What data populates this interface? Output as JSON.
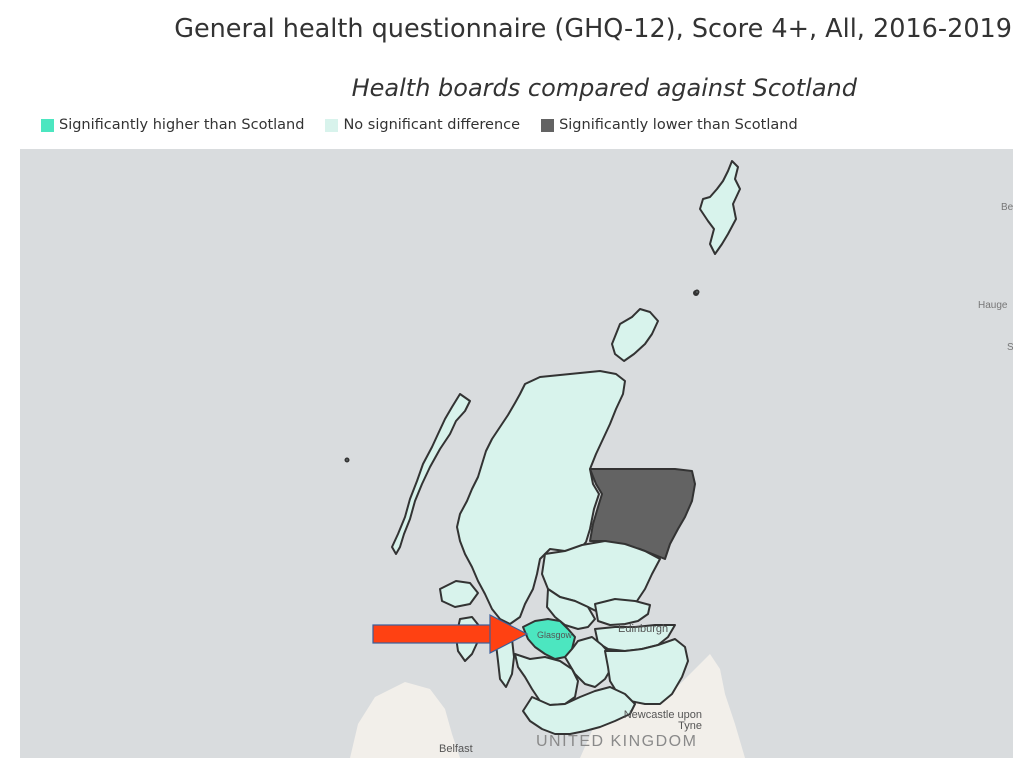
{
  "title": "General health questionnaire (GHQ-12), Score 4+, All, 2016-2019",
  "subtitle": "Health boards compared against Scotland",
  "legend": [
    {
      "label": "Significantly higher than Scotland",
      "color": "#4ce6c0"
    },
    {
      "label": "No significant difference",
      "color": "#d8f3ec"
    },
    {
      "label": "Significantly lower than Scotland",
      "color": "#636363"
    }
  ],
  "map": {
    "background_color": "#d9dcde",
    "land_color": "#f2efea",
    "arrow_color": "#ff4112",
    "place_labels": {
      "edinburgh": "Edinburgh",
      "glasgow": "Glasgow",
      "newcastle": "Newcastle upon Tyne",
      "belfast": "Belfast",
      "uk": "UNITED KINGDOM",
      "bergen": "Be",
      "haugesund": "Hauge",
      "stavanger": "S"
    },
    "regions": [
      {
        "name": "Grampian",
        "status": "Significantly lower than Scotland"
      },
      {
        "name": "Greater Glasgow and Clyde",
        "status": "Significantly higher than Scotland"
      },
      {
        "name": "Highland",
        "status": "No significant difference"
      },
      {
        "name": "Tayside",
        "status": "No significant difference"
      },
      {
        "name": "Fife",
        "status": "No significant difference"
      },
      {
        "name": "Lothian",
        "status": "No significant difference"
      },
      {
        "name": "Borders",
        "status": "No significant difference"
      },
      {
        "name": "Dumfries and Galloway",
        "status": "No significant difference"
      },
      {
        "name": "Ayrshire and Arran",
        "status": "No significant difference"
      },
      {
        "name": "Lanarkshire",
        "status": "No significant difference"
      },
      {
        "name": "Forth Valley",
        "status": "No significant difference"
      },
      {
        "name": "Western Isles",
        "status": "No significant difference"
      },
      {
        "name": "Orkney",
        "status": "No significant difference"
      },
      {
        "name": "Shetland",
        "status": "No significant difference"
      }
    ]
  }
}
